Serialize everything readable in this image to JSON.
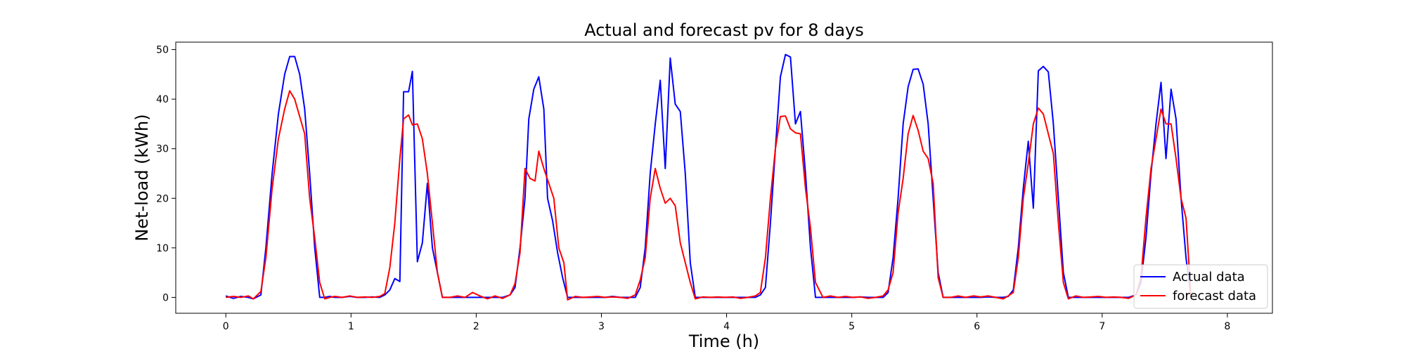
{
  "chart_data": {
    "type": "line",
    "title": "Actual and forecast pv for 8 days",
    "xlabel": "Time (h)",
    "ylabel": "Net-load (kWh)",
    "xlim": [
      -0.4,
      8.36
    ],
    "ylim": [
      -3.2,
      51.5
    ],
    "xticks": [
      0,
      1,
      2,
      3,
      4,
      5,
      6,
      7,
      8
    ],
    "yticks": [
      0,
      10,
      20,
      30,
      40,
      50
    ],
    "grid": false,
    "legend_position": "lower-right",
    "series": [
      {
        "name": "Actual data",
        "color": "#0000ff",
        "points": [
          [
            0.0,
            0.3
          ],
          [
            0.06,
            -0.2
          ],
          [
            0.12,
            0.2
          ],
          [
            0.18,
            0.0
          ],
          [
            0.22,
            -0.3
          ],
          [
            0.28,
            0.5
          ],
          [
            0.32,
            10
          ],
          [
            0.37,
            25
          ],
          [
            0.42,
            37
          ],
          [
            0.47,
            45
          ],
          [
            0.51,
            48.6
          ],
          [
            0.55,
            48.6
          ],
          [
            0.59,
            45
          ],
          [
            0.63,
            38
          ],
          [
            0.67,
            25
          ],
          [
            0.71,
            10
          ],
          [
            0.75,
            0
          ],
          [
            0.79,
            0
          ],
          [
            0.83,
            0.2
          ],
          [
            0.87,
            0
          ],
          [
            0.93,
            0
          ],
          [
            0.99,
            0.2
          ],
          [
            1.05,
            0
          ],
          [
            1.11,
            0
          ],
          [
            1.17,
            0.1
          ],
          [
            1.23,
            0
          ],
          [
            1.27,
            0.5
          ],
          [
            1.31,
            1.5
          ],
          [
            1.35,
            3.8
          ],
          [
            1.39,
            3.2
          ],
          [
            1.42,
            41.5
          ],
          [
            1.46,
            41.5
          ],
          [
            1.49,
            45.6
          ],
          [
            1.53,
            7.2
          ],
          [
            1.57,
            11
          ],
          [
            1.61,
            23
          ],
          [
            1.65,
            10
          ],
          [
            1.69,
            5
          ],
          [
            1.73,
            0
          ],
          [
            1.79,
            0
          ],
          [
            1.85,
            0
          ],
          [
            1.91,
            0
          ],
          [
            1.97,
            0
          ],
          [
            2.03,
            0
          ],
          [
            2.09,
            0
          ],
          [
            2.15,
            0
          ],
          [
            2.21,
            0
          ],
          [
            2.27,
            0.5
          ],
          [
            2.31,
            2
          ],
          [
            2.35,
            10
          ],
          [
            2.39,
            20
          ],
          [
            2.42,
            36
          ],
          [
            2.46,
            42
          ],
          [
            2.5,
            44.5
          ],
          [
            2.54,
            38
          ],
          [
            2.57,
            20
          ],
          [
            2.61,
            15.5
          ],
          [
            2.65,
            9
          ],
          [
            2.69,
            4
          ],
          [
            2.73,
            0
          ],
          [
            2.79,
            0
          ],
          [
            2.85,
            0
          ],
          [
            2.91,
            0
          ],
          [
            2.97,
            0
          ],
          [
            3.03,
            0
          ],
          [
            3.09,
            0.2
          ],
          [
            3.15,
            0
          ],
          [
            3.21,
            0
          ],
          [
            3.27,
            0
          ],
          [
            3.31,
            2
          ],
          [
            3.35,
            10
          ],
          [
            3.39,
            25
          ],
          [
            3.43,
            35
          ],
          [
            3.47,
            43.8
          ],
          [
            3.51,
            26
          ],
          [
            3.55,
            48.3
          ],
          [
            3.59,
            39
          ],
          [
            3.63,
            37.5
          ],
          [
            3.67,
            25
          ],
          [
            3.71,
            7
          ],
          [
            3.75,
            0
          ],
          [
            3.81,
            0
          ],
          [
            3.87,
            0
          ],
          [
            3.93,
            0
          ],
          [
            3.99,
            0
          ],
          [
            4.05,
            0
          ],
          [
            4.11,
            0
          ],
          [
            4.17,
            0
          ],
          [
            4.23,
            0
          ],
          [
            4.27,
            0.5
          ],
          [
            4.31,
            2
          ],
          [
            4.35,
            15
          ],
          [
            4.39,
            30
          ],
          [
            4.43,
            44.5
          ],
          [
            4.47,
            49
          ],
          [
            4.51,
            48.5
          ],
          [
            4.55,
            35
          ],
          [
            4.59,
            37.5
          ],
          [
            4.63,
            25
          ],
          [
            4.67,
            10
          ],
          [
            4.71,
            0
          ],
          [
            4.77,
            0
          ],
          [
            4.83,
            0
          ],
          [
            4.89,
            0
          ],
          [
            4.95,
            0
          ],
          [
            5.01,
            0
          ],
          [
            5.07,
            0.1
          ],
          [
            5.13,
            0
          ],
          [
            5.19,
            0
          ],
          [
            5.25,
            0
          ],
          [
            5.29,
            1
          ],
          [
            5.33,
            8
          ],
          [
            5.37,
            20
          ],
          [
            5.41,
            35
          ],
          [
            5.45,
            42.5
          ],
          [
            5.49,
            46
          ],
          [
            5.53,
            46.1
          ],
          [
            5.57,
            43
          ],
          [
            5.61,
            35
          ],
          [
            5.65,
            20
          ],
          [
            5.69,
            5
          ],
          [
            5.73,
            0
          ],
          [
            5.79,
            0
          ],
          [
            5.85,
            0
          ],
          [
            5.91,
            0
          ],
          [
            5.97,
            0
          ],
          [
            6.03,
            0
          ],
          [
            6.09,
            0.1
          ],
          [
            6.15,
            0
          ],
          [
            6.21,
            0
          ],
          [
            6.25,
            0.2
          ],
          [
            6.29,
            1.5
          ],
          [
            6.33,
            10
          ],
          [
            6.37,
            22
          ],
          [
            6.41,
            31.5
          ],
          [
            6.45,
            18
          ],
          [
            6.49,
            45.7
          ],
          [
            6.53,
            46.6
          ],
          [
            6.57,
            45.5
          ],
          [
            6.61,
            35
          ],
          [
            6.65,
            20
          ],
          [
            6.69,
            5
          ],
          [
            6.73,
            0
          ],
          [
            6.79,
            0
          ],
          [
            6.85,
            0
          ],
          [
            6.91,
            0
          ],
          [
            6.97,
            0
          ],
          [
            7.03,
            0
          ],
          [
            7.09,
            0
          ],
          [
            7.15,
            0
          ],
          [
            7.21,
            0
          ],
          [
            7.27,
            0.5
          ],
          [
            7.31,
            3
          ],
          [
            7.35,
            12
          ],
          [
            7.39,
            25
          ],
          [
            7.43,
            35
          ],
          [
            7.47,
            43.4
          ],
          [
            7.51,
            28
          ],
          [
            7.55,
            42
          ],
          [
            7.59,
            36
          ],
          [
            7.63,
            20
          ],
          [
            7.67,
            8
          ],
          [
            7.71,
            0
          ]
        ]
      },
      {
        "name": "forecast data",
        "color": "#ff0000",
        "points": [
          [
            0.0,
            0.0
          ],
          [
            0.06,
            0.2
          ],
          [
            0.12,
            0.0
          ],
          [
            0.18,
            0.3
          ],
          [
            0.22,
            -0.3
          ],
          [
            0.28,
            1.2
          ],
          [
            0.32,
            8
          ],
          [
            0.37,
            22
          ],
          [
            0.42,
            32
          ],
          [
            0.47,
            38
          ],
          [
            0.51,
            41.7
          ],
          [
            0.55,
            40
          ],
          [
            0.59,
            36.5
          ],
          [
            0.63,
            33
          ],
          [
            0.67,
            20
          ],
          [
            0.71,
            12
          ],
          [
            0.75,
            3
          ],
          [
            0.79,
            -0.3
          ],
          [
            0.83,
            0
          ],
          [
            0.87,
            0.2
          ],
          [
            0.93,
            0
          ],
          [
            0.99,
            0.3
          ],
          [
            1.05,
            0
          ],
          [
            1.11,
            0.1
          ],
          [
            1.17,
            0
          ],
          [
            1.23,
            0.2
          ],
          [
            1.27,
            0.8
          ],
          [
            1.31,
            6
          ],
          [
            1.35,
            15
          ],
          [
            1.39,
            28
          ],
          [
            1.42,
            36
          ],
          [
            1.46,
            36.8
          ],
          [
            1.49,
            34.8
          ],
          [
            1.53,
            35
          ],
          [
            1.57,
            32
          ],
          [
            1.61,
            25
          ],
          [
            1.65,
            15
          ],
          [
            1.69,
            5
          ],
          [
            1.73,
            0
          ],
          [
            1.79,
            0
          ],
          [
            1.85,
            0.3
          ],
          [
            1.91,
            0
          ],
          [
            1.97,
            1
          ],
          [
            2.03,
            0.3
          ],
          [
            2.09,
            -0.3
          ],
          [
            2.15,
            0.3
          ],
          [
            2.21,
            -0.2
          ],
          [
            2.27,
            0.5
          ],
          [
            2.31,
            2.8
          ],
          [
            2.35,
            9
          ],
          [
            2.39,
            26
          ],
          [
            2.43,
            24
          ],
          [
            2.47,
            23.5
          ],
          [
            2.5,
            29.5
          ],
          [
            2.54,
            26
          ],
          [
            2.58,
            23
          ],
          [
            2.62,
            20
          ],
          [
            2.66,
            10
          ],
          [
            2.7,
            7
          ],
          [
            2.73,
            -0.5
          ],
          [
            2.79,
            0.2
          ],
          [
            2.85,
            0
          ],
          [
            2.91,
            0.1
          ],
          [
            2.97,
            0.2
          ],
          [
            3.03,
            0
          ],
          [
            3.09,
            0.1
          ],
          [
            3.15,
            0
          ],
          [
            3.21,
            -0.2
          ],
          [
            3.27,
            0.5
          ],
          [
            3.31,
            3.5
          ],
          [
            3.35,
            8
          ],
          [
            3.39,
            20
          ],
          [
            3.43,
            26
          ],
          [
            3.47,
            22
          ],
          [
            3.51,
            19
          ],
          [
            3.55,
            20
          ],
          [
            3.59,
            18.5
          ],
          [
            3.63,
            11
          ],
          [
            3.67,
            7
          ],
          [
            3.71,
            3
          ],
          [
            3.75,
            -0.3
          ],
          [
            3.81,
            0.1
          ],
          [
            3.87,
            0
          ],
          [
            3.93,
            0.1
          ],
          [
            3.99,
            0
          ],
          [
            4.05,
            0.1
          ],
          [
            4.11,
            -0.2
          ],
          [
            4.17,
            0
          ],
          [
            4.23,
            0.3
          ],
          [
            4.27,
            1
          ],
          [
            4.31,
            8
          ],
          [
            4.35,
            20
          ],
          [
            4.39,
            30
          ],
          [
            4.43,
            36.5
          ],
          [
            4.47,
            36.6
          ],
          [
            4.51,
            34
          ],
          [
            4.55,
            33.2
          ],
          [
            4.59,
            33
          ],
          [
            4.63,
            22
          ],
          [
            4.67,
            14
          ],
          [
            4.71,
            3
          ],
          [
            4.77,
            0
          ],
          [
            4.83,
            0.3
          ],
          [
            4.89,
            0
          ],
          [
            4.95,
            0.2
          ],
          [
            5.01,
            0
          ],
          [
            5.07,
            0.1
          ],
          [
            5.13,
            -0.2
          ],
          [
            5.19,
            0
          ],
          [
            5.25,
            0.3
          ],
          [
            5.29,
            1.5
          ],
          [
            5.33,
            5
          ],
          [
            5.37,
            17
          ],
          [
            5.41,
            24
          ],
          [
            5.45,
            33
          ],
          [
            5.49,
            36.7
          ],
          [
            5.53,
            33.7
          ],
          [
            5.57,
            29.5
          ],
          [
            5.61,
            28
          ],
          [
            5.65,
            23
          ],
          [
            5.69,
            4
          ],
          [
            5.73,
            0
          ],
          [
            5.79,
            0
          ],
          [
            5.85,
            0.3
          ],
          [
            5.91,
            0
          ],
          [
            5.97,
            0.3
          ],
          [
            6.03,
            0.1
          ],
          [
            6.09,
            0.3
          ],
          [
            6.15,
            0
          ],
          [
            6.21,
            -0.3
          ],
          [
            6.25,
            0.3
          ],
          [
            6.29,
            1
          ],
          [
            6.33,
            8
          ],
          [
            6.37,
            20
          ],
          [
            6.41,
            27
          ],
          [
            6.45,
            35
          ],
          [
            6.49,
            38.2
          ],
          [
            6.53,
            37
          ],
          [
            6.57,
            33
          ],
          [
            6.61,
            29
          ],
          [
            6.65,
            15
          ],
          [
            6.69,
            3
          ],
          [
            6.73,
            -0.3
          ],
          [
            6.79,
            0.3
          ],
          [
            6.85,
            0
          ],
          [
            6.91,
            0.1
          ],
          [
            6.97,
            0.2
          ],
          [
            7.03,
            0
          ],
          [
            7.09,
            0.1
          ],
          [
            7.15,
            0
          ],
          [
            7.21,
            -0.2
          ],
          [
            7.27,
            0.5
          ],
          [
            7.31,
            4
          ],
          [
            7.35,
            16
          ],
          [
            7.39,
            26
          ],
          [
            7.43,
            32
          ],
          [
            7.47,
            38
          ],
          [
            7.51,
            35
          ],
          [
            7.55,
            35
          ],
          [
            7.59,
            28
          ],
          [
            7.63,
            20
          ],
          [
            7.67,
            16
          ],
          [
            7.71,
            0
          ]
        ]
      }
    ]
  }
}
